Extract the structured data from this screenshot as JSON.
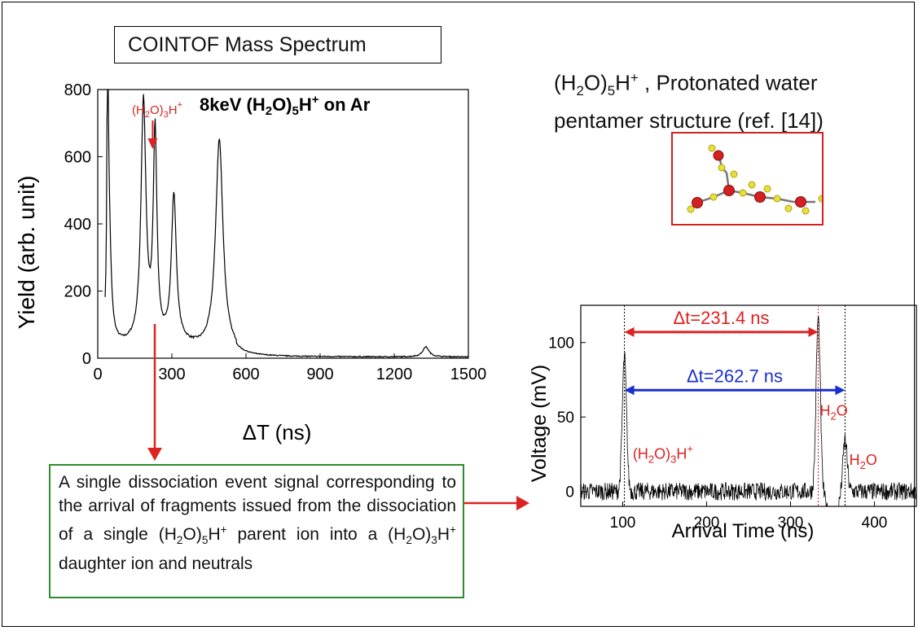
{
  "box_title": "COINTOF Mass Spectrum",
  "structure": {
    "line1_pre": "(H",
    "line1_sub": "2",
    "line1_mid": "O)",
    "line1_sub2": "5",
    "line1_post": "H",
    "line1_sup": "+",
    "line1_tail": " , Protonated water",
    "line2": "pentamer structure (ref. [14])"
  },
  "description": {
    "text_a": "A single dissociation event signal corresponding to the arrival of fragments issued from the dissociation of a single (H",
    "sub1": "2",
    "text_b": "O)",
    "sub2": "5",
    "text_c": "H",
    "sup1": "+",
    "text_d": " parent ion into a (H",
    "sub3": "2",
    "text_e": "O)",
    "sub4": "3",
    "text_f": "H",
    "sup2": "+",
    "text_g": " daughter ion and neutrals"
  },
  "colors": {
    "red": "#dd2222",
    "blue": "#1a2fd0",
    "green": "#2e8b2e",
    "black": "#000000"
  },
  "chart_data": [
    {
      "type": "line",
      "title": "8keV (H2O)5H+ on Ar",
      "title_parts": {
        "a": "8keV (H",
        "b": "2",
        "c": "O)",
        "d": "5",
        "e": "H",
        "f": "+",
        "g": " on  Ar"
      },
      "xlabel": "ΔT (ns)",
      "ylabel": "Yield (arb. unit)",
      "xlim": [
        0,
        1500
      ],
      "ylim": [
        0,
        800
      ],
      "xticks": [
        0,
        300,
        600,
        900,
        1200,
        1500
      ],
      "yticks": [
        0,
        200,
        400,
        600,
        800
      ],
      "baseline": 30,
      "peaks": [
        {
          "x": 40,
          "y": 740,
          "w": 3
        },
        {
          "x": 45,
          "y": 370,
          "w": 10
        },
        {
          "x": 185,
          "y": 720,
          "w": 12
        },
        {
          "x": 232,
          "y": 620,
          "w": 9
        },
        {
          "x": 308,
          "y": 440,
          "w": 12
        },
        {
          "x": 492,
          "y": 630,
          "w": 18
        },
        {
          "x": 1328,
          "y": 30,
          "w": 15
        }
      ],
      "annotation": {
        "label_a": "(H",
        "sub": "2",
        "label_b": "O)",
        "sub2": "3",
        "label_c": "H",
        "sup": "+",
        "x": 232,
        "color": "#dd2222"
      }
    },
    {
      "type": "line",
      "xlabel": "Arrival Time (ns)",
      "ylabel": "Voltage (mV)",
      "xlim": [
        50,
        450
      ],
      "ylim": [
        -10,
        125
      ],
      "xticks": [
        100,
        200,
        300,
        400
      ],
      "yticks": [
        0,
        50,
        100
      ],
      "peaks": [
        {
          "x": 102,
          "y": 90,
          "w": 2.5
        },
        {
          "x": 333,
          "y": 117,
          "w": 2.5
        },
        {
          "x": 365,
          "y": 35,
          "w": 2.5
        }
      ],
      "dips": [
        {
          "x": 350,
          "y": -30,
          "w": 5
        }
      ],
      "vlines_red": [
        333
      ],
      "vlines_black": [
        102,
        365
      ],
      "arrows": [
        {
          "label": "Δt=231.4 ns",
          "from": 102,
          "to": 333,
          "y": 107,
          "color": "#dd2222"
        },
        {
          "label": "Δt=262.7 ns",
          "from": 102,
          "to": 365,
          "y": 68,
          "color": "#1a2fd0"
        }
      ],
      "labels": [
        {
          "a": "(H",
          "sub": "2",
          "b": "O)",
          "sub2": "3",
          "c": "H",
          "sup": "+",
          "x": 112,
          "y": 22
        },
        {
          "a": "H",
          "sub": "2",
          "b": "O",
          "x": 335,
          "y": 51
        },
        {
          "a": "H",
          "sub": "2",
          "b": "O",
          "x": 370,
          "y": 18
        }
      ]
    }
  ]
}
